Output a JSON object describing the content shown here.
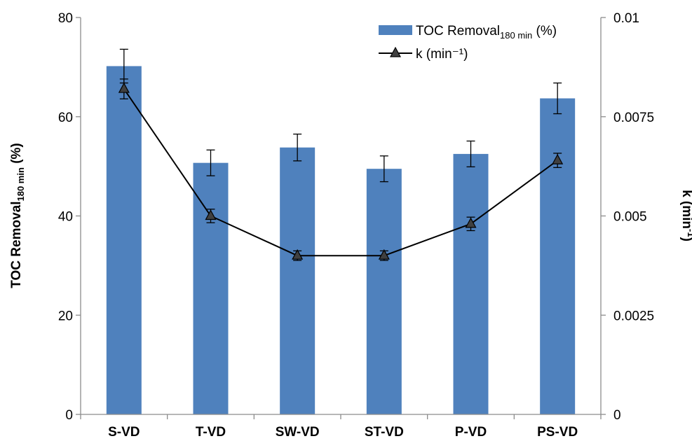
{
  "chart_data": {
    "type": "bar",
    "categories": [
      "S-VD",
      "T-VD",
      "SW-VD",
      "ST-VD",
      "P-VD",
      "PS-VD"
    ],
    "series": [
      {
        "name": "TOC Removal180 min (%)",
        "name_main": "TOC Removal",
        "name_sub": "180 min",
        "name_tail": " (%)",
        "kind": "bar",
        "axis": "left",
        "color": "#4f81bd",
        "values": [
          70.2,
          50.7,
          53.8,
          49.5,
          52.5,
          63.7
        ],
        "errors": [
          3.4,
          2.6,
          2.7,
          2.6,
          2.6,
          3.1
        ]
      },
      {
        "name": "k (min⁻¹)",
        "kind": "line",
        "axis": "right",
        "color": "#000000",
        "marker": "triangle",
        "marker_fill": "#404040",
        "values": [
          0.0082,
          0.005,
          0.004,
          0.004,
          0.0048,
          0.0064
        ],
        "errors": [
          0.00025,
          0.00017,
          0.00012,
          0.00012,
          0.00017,
          0.00018
        ]
      }
    ],
    "ylabel_left": {
      "main": "TOC Removal",
      "sub": "180 min",
      "tail": " (%)"
    },
    "ylabel_right": {
      "main": "k (min",
      "sup": "-1",
      "tail": ")"
    },
    "ylim_left": [
      0,
      80
    ],
    "yticks_left": [
      "0",
      "20",
      "40",
      "60",
      "80"
    ],
    "ylim_right": [
      0,
      0.01
    ],
    "yticks_right": [
      "0",
      "0.0025",
      "0.005",
      "0.0075",
      "0.01"
    ],
    "grid": false,
    "legend_position": "top-right"
  }
}
